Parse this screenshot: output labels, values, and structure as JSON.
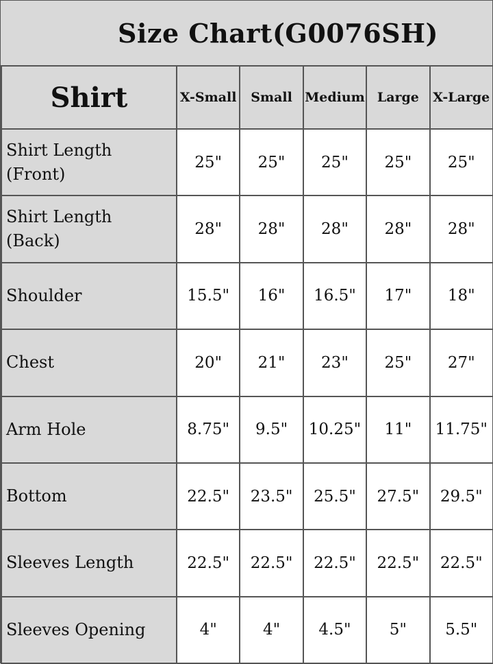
{
  "title": "Size Chart(G0076SH)",
  "table": {
    "corner": "Shirt",
    "sizes": [
      "X-Small",
      "Small",
      "Medium",
      "Large",
      "X-Large"
    ],
    "rows": [
      {
        "label": "Shirt Length (Front)",
        "values": [
          "25\"",
          "25\"",
          "25\"",
          "25\"",
          "25\""
        ]
      },
      {
        "label": "Shirt Length (Back)",
        "values": [
          "28\"",
          "28\"",
          "28\"",
          "28\"",
          "28\""
        ]
      },
      {
        "label": "Shoulder",
        "values": [
          "15.5\"",
          "16\"",
          "16.5\"",
          "17\"",
          "18\""
        ]
      },
      {
        "label": "Chest",
        "values": [
          "20\"",
          "21\"",
          "23\"",
          "25\"",
          "27\""
        ]
      },
      {
        "label": "Arm Hole",
        "values": [
          "8.75\"",
          "9.5\"",
          "10.25\"",
          "11\"",
          "11.75\""
        ]
      },
      {
        "label": "Bottom",
        "values": [
          "22.5\"",
          "23.5\"",
          "25.5\"",
          "27.5\"",
          "29.5\""
        ]
      },
      {
        "label": "Sleeves Length",
        "values": [
          "22.5\"",
          "22.5\"",
          "22.5\"",
          "22.5\"",
          "22.5\""
        ]
      },
      {
        "label": "Sleeves Opening",
        "values": [
          "4\"",
          "4\"",
          "4.5\"",
          "5\"",
          "5.5\""
        ]
      }
    ]
  },
  "colors": {
    "header_bg": "#d9d9d9",
    "cell_bg": "#ffffff",
    "border": "#555555"
  }
}
